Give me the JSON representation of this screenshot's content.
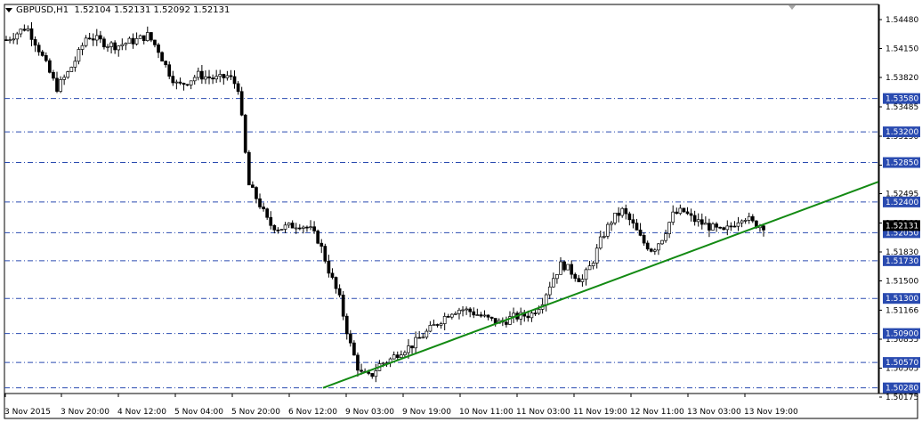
{
  "window": {
    "symbol_timeframe": "GBPUSD,H1",
    "ohlc": "1.52104 1.52131 1.52092 1.52131"
  },
  "price_axis": {
    "ticks": [
      "1.54480",
      "1.54150",
      "1.53820",
      "1.53485",
      "1.53150",
      "1.52820",
      "1.52495",
      "1.52160",
      "1.51830",
      "1.51500",
      "1.51166",
      "1.50835",
      "1.50505",
      "1.50175"
    ],
    "tick_values": [
      1.5448,
      1.5415,
      1.5382,
      1.53485,
      1.5315,
      1.5282,
      1.52495,
      1.5216,
      1.5183,
      1.515,
      1.51166,
      1.50835,
      1.50505,
      1.50175
    ]
  },
  "time_axis": {
    "labels": [
      "3 Nov 2015",
      "3 Nov 20:00",
      "4 Nov 12:00",
      "5 Nov 04:00",
      "5 Nov 20:00",
      "6 Nov 12:00",
      "9 Nov 03:00",
      "9 Nov 19:00",
      "10 Nov 11:00",
      "11 Nov 03:00",
      "11 Nov 19:00",
      "12 Nov 11:00",
      "13 Nov 03:00",
      "13 Nov 19:00"
    ]
  },
  "horizontal_levels": [
    {
      "label": "1.53580",
      "value": 1.5358,
      "style": "dashdot"
    },
    {
      "label": "1.53200",
      "value": 1.532,
      "style": "dashdot"
    },
    {
      "label": "1.52850",
      "value": 1.5285,
      "style": "dashdot"
    },
    {
      "label": "1.52400",
      "value": 1.524,
      "style": "dashdot"
    },
    {
      "label": "1.52050",
      "value": 1.5205,
      "style": "dashdot"
    },
    {
      "label": "1.51730",
      "value": 1.5173,
      "style": "dashdot"
    },
    {
      "label": "1.51300",
      "value": 1.513,
      "style": "dashdot"
    },
    {
      "label": "1.50900",
      "value": 1.509,
      "style": "dashdot"
    },
    {
      "label": "1.50570",
      "value": 1.5057,
      "style": "dashdot"
    },
    {
      "label": "1.50280",
      "value": 1.5028,
      "style": "dashdot"
    }
  ],
  "current_price": {
    "label": "1.52131",
    "value": 1.52131
  },
  "colors": {
    "level_line": "#2a4bb0",
    "level_label_bg": "#2a4bb0",
    "trendline": "#138a13",
    "candle": "#000000",
    "current_price_bg": "#000000"
  },
  "chart_data": {
    "type": "candlestick",
    "symbol": "GBPUSD",
    "timeframe": "H1",
    "close_path": [
      {
        "t": "3 Nov 2015",
        "v": 1.5425
      },
      {
        "v": 1.5432
      },
      {
        "v": 1.544
      },
      {
        "v": 1.542
      },
      {
        "v": 1.5395
      },
      {
        "v": 1.537
      },
      {
        "v": 1.5385
      },
      {
        "v": 1.5405
      },
      {
        "t": "3 Nov 20:00",
        "v": 1.543
      },
      {
        "v": 1.5425
      },
      {
        "v": 1.542
      },
      {
        "v": 1.5418
      },
      {
        "v": 1.5422
      },
      {
        "v": 1.5425
      },
      {
        "v": 1.543
      },
      {
        "t": "4 Nov 12:00",
        "v": 1.5415
      },
      {
        "v": 1.539
      },
      {
        "v": 1.5372
      },
      {
        "v": 1.5378
      },
      {
        "v": 1.5385
      },
      {
        "v": 1.5382
      },
      {
        "v": 1.538
      },
      {
        "t": "5 Nov 04:00",
        "v": 1.5384
      },
      {
        "v": 1.537
      },
      {
        "v": 1.526
      },
      {
        "v": 1.524
      },
      {
        "v": 1.5215
      },
      {
        "v": 1.521
      },
      {
        "v": 1.5212
      },
      {
        "t": "5 Nov 20:00",
        "v": 1.5215
      },
      {
        "v": 1.521
      },
      {
        "v": 1.5195
      },
      {
        "v": 1.516
      },
      {
        "v": 1.513
      },
      {
        "v": 1.508
      },
      {
        "t": "6 Nov 12:00",
        "v": 1.5045
      },
      {
        "v": 1.504
      },
      {
        "v": 1.5055
      },
      {
        "v": 1.506
      },
      {
        "v": 1.507
      },
      {
        "v": 1.5075
      },
      {
        "t": "9 Nov 03:00",
        "v": 1.5085
      },
      {
        "v": 1.5095
      },
      {
        "v": 1.5105
      },
      {
        "v": 1.5115
      },
      {
        "v": 1.5118
      },
      {
        "t": "9 Nov 19:00",
        "v": 1.5115
      },
      {
        "v": 1.511
      },
      {
        "v": 1.5105
      },
      {
        "v": 1.5102
      },
      {
        "v": 1.5108
      },
      {
        "t": "10 Nov 11:00",
        "v": 1.511
      },
      {
        "v": 1.5112
      },
      {
        "v": 1.5125
      },
      {
        "v": 1.515
      },
      {
        "v": 1.517
      },
      {
        "t": "11 Nov 03:00",
        "v": 1.516
      },
      {
        "v": 1.515
      },
      {
        "v": 1.517
      },
      {
        "v": 1.52
      },
      {
        "v": 1.522
      },
      {
        "t": "11 Nov 19:00",
        "v": 1.523
      },
      {
        "v": 1.5215
      },
      {
        "v": 1.5195
      },
      {
        "v": 1.5185
      },
      {
        "v": 1.52
      },
      {
        "t": "12 Nov 11:00",
        "v": 1.5225
      },
      {
        "v": 1.523
      },
      {
        "v": 1.522
      },
      {
        "v": 1.5215
      },
      {
        "v": 1.521
      },
      {
        "t": "13 Nov 03:00",
        "v": 1.5205
      },
      {
        "v": 1.5215
      },
      {
        "v": 1.5225
      },
      {
        "v": 1.5215
      },
      {
        "t": "13 Nov 19:00",
        "v": 1.5213
      }
    ],
    "trendline": {
      "from": {
        "t": "6 Nov 12:00",
        "v": 1.5028
      },
      "direction": "up",
      "to": {
        "past": "13 Nov 19:00",
        "v": 1.5263
      }
    },
    "ylim": [
      1.50175,
      1.5455
    ]
  }
}
